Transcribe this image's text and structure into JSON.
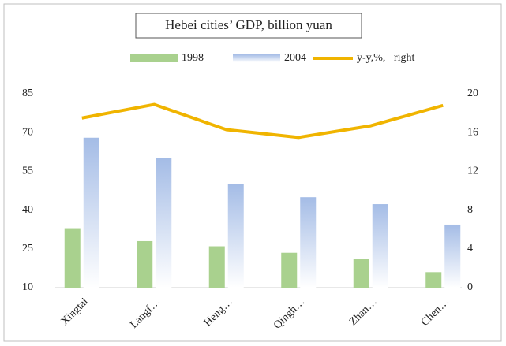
{
  "chart_data": {
    "type": "bar",
    "title": "Hebei cities’ GDP, billion yuan",
    "categories": [
      "Xingtai",
      "Langf…",
      "Heng…",
      "Qingh…",
      "Zhan…",
      "Chen…"
    ],
    "series": [
      {
        "name": "1998",
        "type": "bar",
        "color": "#a9d18e",
        "values": [
          33,
          28,
          26,
          23.5,
          21,
          16
        ]
      },
      {
        "name": "2004",
        "type": "bar",
        "color": "#a4bce6",
        "values": [
          68,
          60,
          50,
          45,
          42.3,
          34.4
        ]
      },
      {
        "name": "y-y,%,   right",
        "type": "line",
        "axis": "y2",
        "color": "#f0b400",
        "values": [
          17.5,
          18.9,
          16.3,
          15.5,
          16.7,
          18.8
        ]
      }
    ],
    "ylim": [
      10,
      85
    ],
    "yticks": [
      10,
      25,
      40,
      55,
      70,
      85
    ],
    "y2lim": [
      0,
      20
    ],
    "y2ticks": [
      0,
      4,
      8,
      12,
      16,
      20
    ],
    "legend": "top",
    "grid": false
  }
}
